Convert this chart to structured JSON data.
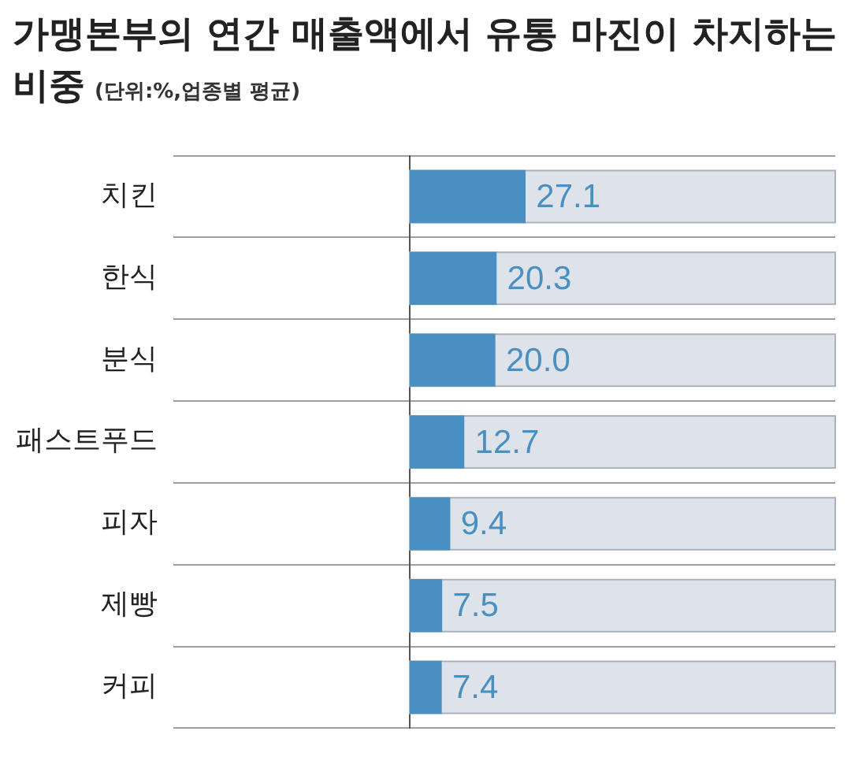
{
  "chart_data": {
    "type": "bar",
    "orientation": "horizontal",
    "title": "가맹본부의 연간 매출액에서 유통 마진이 차지하는 비중",
    "subtitle": "(단위:%,업종별 평균)",
    "categories": [
      "치킨",
      "한식",
      "분식",
      "패스트푸드",
      "피자",
      "제빵",
      "커피"
    ],
    "values": [
      27.1,
      20.3,
      20.0,
      12.7,
      9.4,
      7.5,
      7.4
    ],
    "value_labels": [
      "27.1",
      "20.3",
      "20.0",
      "12.7",
      "9.4",
      "7.5",
      "7.4"
    ],
    "color": "#4a8fc2",
    "xlim": [
      0,
      100
    ],
    "tick_labels": "y",
    "grid": "y",
    "legend": false
  }
}
